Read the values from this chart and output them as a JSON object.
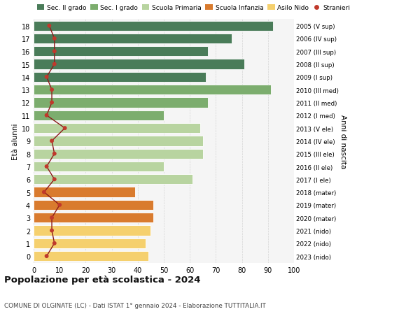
{
  "ages": [
    18,
    17,
    16,
    15,
    14,
    13,
    12,
    11,
    10,
    9,
    8,
    7,
    6,
    5,
    4,
    3,
    2,
    1,
    0
  ],
  "bar_values": [
    92,
    76,
    67,
    81,
    66,
    91,
    67,
    50,
    64,
    65,
    65,
    50,
    61,
    39,
    46,
    46,
    45,
    43,
    44
  ],
  "stranieri": [
    6,
    8,
    8,
    8,
    5,
    7,
    7,
    5,
    12,
    7,
    8,
    5,
    8,
    4,
    10,
    7,
    7,
    8,
    5
  ],
  "bar_colors": [
    "#4a7c59",
    "#4a7c59",
    "#4a7c59",
    "#4a7c59",
    "#4a7c59",
    "#7cad6e",
    "#7cad6e",
    "#7cad6e",
    "#b8d4a0",
    "#b8d4a0",
    "#b8d4a0",
    "#b8d4a0",
    "#b8d4a0",
    "#d97b2e",
    "#d97b2e",
    "#d97b2e",
    "#f5d06e",
    "#f5d06e",
    "#f5d06e"
  ],
  "right_labels": [
    "2005 (V sup)",
    "2006 (IV sup)",
    "2007 (III sup)",
    "2008 (II sup)",
    "2009 (I sup)",
    "2010 (III med)",
    "2011 (II med)",
    "2012 (I med)",
    "2013 (V ele)",
    "2014 (IV ele)",
    "2015 (III ele)",
    "2016 (II ele)",
    "2017 (I ele)",
    "2018 (mater)",
    "2019 (mater)",
    "2020 (mater)",
    "2021 (nido)",
    "2022 (nido)",
    "2023 (nido)"
  ],
  "legend_labels": [
    "Sec. II grado",
    "Sec. I grado",
    "Scuola Primaria",
    "Scuola Infanzia",
    "Asilo Nido",
    "Stranieri"
  ],
  "legend_colors": [
    "#4a7c59",
    "#7cad6e",
    "#b8d4a0",
    "#d97b2e",
    "#f5d06e",
    "#c0392b"
  ],
  "xlabel_vals": [
    0,
    10,
    20,
    30,
    40,
    50,
    60,
    70,
    80,
    90,
    100
  ],
  "title": "Popolazione per età scolastica - 2024",
  "subtitle": "COMUNE DI OLGINATE (LC) - Dati ISTAT 1° gennaio 2024 - Elaborazione TUTTITALIA.IT",
  "ylabel": "Età alunni",
  "right_ylabel": "Anni di nascita",
  "stranieri_color": "#c0392b",
  "line_color": "#8b1a1a",
  "bg_color": "#f5f5f5"
}
